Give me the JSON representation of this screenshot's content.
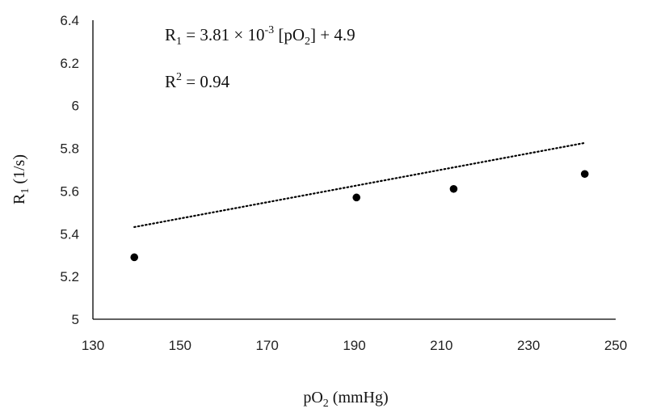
{
  "chart_data": {
    "type": "scatter",
    "x": [
      139.5,
      190.5,
      212.8,
      242.9
    ],
    "y": [
      5.29,
      5.57,
      5.61,
      5.68
    ],
    "xlabel": {
      "main": "pO",
      "sub": "2",
      "rest": " (mmHg)"
    },
    "ylabel": {
      "main": "R",
      "sub": "1",
      "rest": " (1/s)"
    },
    "xlim": [
      130,
      250
    ],
    "ylim": [
      5,
      6.4
    ],
    "xticks": [
      "130",
      "150",
      "170",
      "190",
      "210",
      "230",
      "250"
    ],
    "yticks": [
      "5",
      "5.2",
      "5.4",
      "5.6",
      "5.8",
      "6",
      "6.2",
      "6.4"
    ],
    "trendline": {
      "style": "dotted",
      "slope": 0.00381,
      "intercept": 4.9,
      "x_range": [
        139.5,
        242.9
      ]
    },
    "annotations": {
      "equation": {
        "lhs": "R",
        "lhs_sub": "1",
        "mid": " = 3.81 × 10",
        "exp": "-3",
        "bracket_open": " [pO",
        "bracket_sub": "2",
        "rest": "] + 4.9"
      },
      "r2": {
        "lhs": "R",
        "exp": "2",
        "rest": " = 0.94"
      }
    },
    "grid": false,
    "legend": "none",
    "colors": {
      "marker": "#000000",
      "axis": "#000000",
      "trendline": "#000000"
    }
  }
}
